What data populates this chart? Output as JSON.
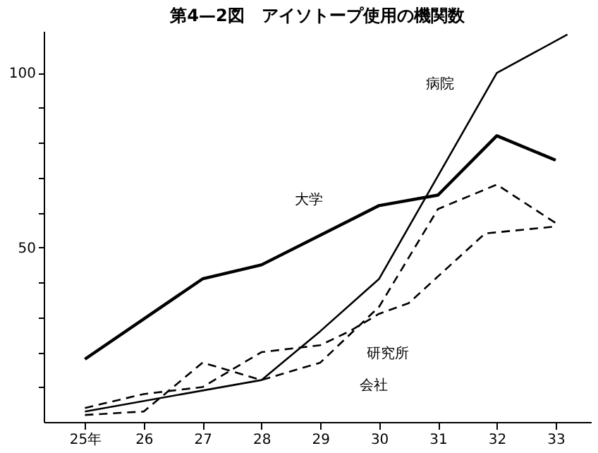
{
  "chart_data": {
    "type": "line",
    "title": "第4—2図　アイソトープ使用の機関数",
    "xlim": [
      24.3,
      33.6
    ],
    "xticks": [
      {
        "value": 25,
        "label": "25年"
      },
      26,
      27,
      28,
      29,
      30,
      31,
      32,
      33
    ],
    "ylim": [
      0,
      112
    ],
    "yticks": [
      {
        "value": 10,
        "label": null
      },
      {
        "value": 20,
        "label": null
      },
      {
        "value": 30,
        "label": null
      },
      {
        "value": 40,
        "label": null
      },
      50,
      {
        "value": 60,
        "label": null
      },
      {
        "value": 70,
        "label": null
      },
      {
        "value": 80,
        "label": null
      },
      {
        "value": 90,
        "label": null
      },
      100
    ],
    "grid": false,
    "marker": "none",
    "series": [
      {
        "name": "大学",
        "color": "#000000",
        "line_style": "solid",
        "x": [
          25,
          27,
          28,
          30,
          31,
          32,
          33
        ],
        "values": [
          18,
          41,
          45,
          62,
          65,
          82,
          75
        ]
      },
      {
        "name": "病院",
        "color": "#000000",
        "line_style": "solid",
        "x": [
          25,
          28,
          29,
          30,
          32,
          33.2
        ],
        "values": [
          3,
          12,
          26,
          41,
          100,
          111
        ]
      },
      {
        "name": "研究所",
        "color": "#000000",
        "line_style": "dashed",
        "x": [
          25,
          26,
          27,
          28,
          29,
          29.5,
          30,
          30.5,
          31.8,
          33
        ],
        "values": [
          4,
          8,
          10,
          20,
          22,
          26,
          31,
          34,
          54,
          56
        ]
      },
      {
        "name": "会社",
        "color": "#000000",
        "line_style": "dashed",
        "x": [
          25,
          26,
          27,
          28,
          29,
          30,
          31,
          32,
          33
        ],
        "values": [
          2,
          3,
          17,
          12,
          17,
          33,
          61,
          68,
          57
        ]
      }
    ]
  }
}
